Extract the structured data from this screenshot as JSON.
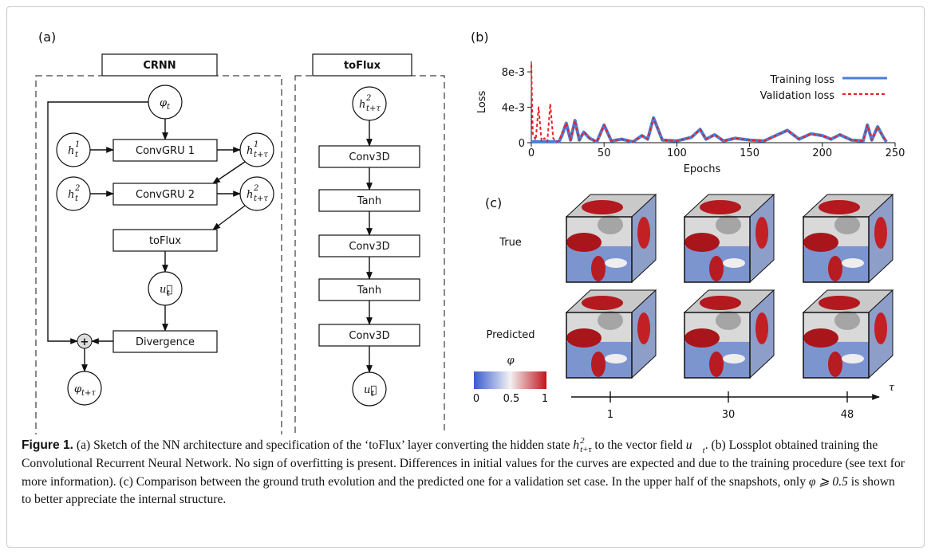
{
  "diagram": {
    "panel": "(a)",
    "crnn": {
      "title": "CRNN",
      "boxes": [
        "ConvGRU 1",
        "ConvGRU 2",
        "toFlux",
        "Divergence"
      ],
      "plus": "+",
      "nodes": [
        {
          "base": "φ",
          "sub": "t"
        },
        {
          "base": "h",
          "sub": "t",
          "sup": "1"
        },
        {
          "base": "h",
          "sub": "t+τ",
          "sup": "1"
        },
        {
          "base": "h",
          "sub": "t",
          "sup": "2"
        },
        {
          "base": "h",
          "sub": "t+τ",
          "sup": "2"
        },
        {
          "base": "u⃗",
          "sub": "t"
        },
        {
          "base": "φ",
          "sub": "t+τ"
        }
      ]
    },
    "toflux": {
      "title": "toFlux",
      "boxes": [
        "Conv3D",
        "Tanh",
        "Conv3D",
        "Tanh",
        "Conv3D"
      ],
      "nodes": [
        {
          "base": "h",
          "sub": "t+τ",
          "sup": "2"
        },
        {
          "base": "u⃗",
          "sub": "t"
        }
      ]
    }
  },
  "chart_data": {
    "type": "line",
    "panel": "(b)",
    "x_label": "Epochs",
    "y_label": "Loss",
    "legend": "upper right",
    "x": [
      0,
      1,
      3,
      5,
      7,
      9,
      11,
      13,
      15,
      17,
      19,
      21,
      24,
      27,
      30,
      33,
      36,
      40,
      45,
      50,
      55,
      62,
      70,
      76,
      80,
      84,
      90,
      100,
      110,
      116,
      120,
      126,
      132,
      140,
      150,
      160,
      168,
      176,
      184,
      192,
      200,
      206,
      212,
      220,
      228,
      231,
      234,
      238,
      242,
      244
    ],
    "series": [
      {
        "name": "Training loss",
        "color": "#4a7fd8",
        "values": [
          0.0001,
          0.0001,
          0.0001,
          0.0001,
          0.0001,
          0.0001,
          0.0001,
          0.0001,
          0.0001,
          0.0001,
          0.0001,
          0.0008,
          0.0022,
          0.0003,
          0.0025,
          0.0003,
          0.0012,
          0.0005,
          0.0001,
          0.002,
          0.0002,
          0.0004,
          0.0001,
          0.0008,
          0.0004,
          0.0028,
          0.0003,
          0.0002,
          0.0006,
          0.0015,
          0.0004,
          0.0009,
          0.0002,
          0.0005,
          0.0003,
          0.0002,
          0.0008,
          0.0014,
          0.0004,
          0.001,
          0.0008,
          0.0004,
          0.0009,
          0.0003,
          0.0002,
          0.002,
          0.0003,
          0.0018,
          0.0006,
          0.0001
        ]
      },
      {
        "name": "Validation loss",
        "color": "#e8202a",
        "dashed": true,
        "values": [
          0.0088,
          0.001,
          0.0003,
          0.004,
          0.0002,
          0.0005,
          0.0001,
          0.0044,
          0.0005,
          0.0001,
          0.0002,
          0.001,
          0.0022,
          0.0003,
          0.0025,
          0.0003,
          0.0012,
          0.0005,
          0.0001,
          0.002,
          0.0002,
          0.0004,
          0.0001,
          0.0008,
          0.0004,
          0.0028,
          0.0003,
          0.0002,
          0.0006,
          0.0015,
          0.0004,
          0.0009,
          0.0002,
          0.0005,
          0.0003,
          0.0002,
          0.0008,
          0.0014,
          0.0004,
          0.001,
          0.0008,
          0.0004,
          0.0009,
          0.0003,
          0.0002,
          0.002,
          0.0003,
          0.0018,
          0.0006,
          0.0001
        ]
      }
    ],
    "xlim": [
      0,
      250
    ],
    "xticks": [
      0,
      50,
      100,
      150,
      200,
      250
    ],
    "ylim": [
      0,
      0.009
    ],
    "yticks": [
      0,
      {
        "value": 0.004,
        "label": "4e-3"
      },
      {
        "value": 0.008,
        "label": "8e-3"
      }
    ]
  },
  "panel_c": {
    "panel": "(c)",
    "rows": [
      "True",
      "Predicted"
    ],
    "colorbar": {
      "label": "φ",
      "ticks": [
        "0",
        "0.5",
        "1"
      ]
    },
    "axis": {
      "label": "τ",
      "ticks": [
        "1",
        "30",
        "48"
      ]
    }
  },
  "caption": {
    "label": "Figure 1.",
    "segments": [
      {
        "text": " (a) Sketch of the NN architecture and specification of the ‘toFlux’ layer converting the hidden state "
      },
      {
        "base": "h",
        "sub": "t+τ",
        "sup": "2"
      },
      {
        "text": " to the vector field "
      },
      {
        "base": "u⃗",
        "sub": "t"
      },
      {
        "text": ". (b) Lossplot obtained training the Convolutional Recurrent Neural Network. No sign of overfitting is present. Differences in initial values for the curves are expected and due to the training procedure (see text for more information). (c) Comparison between the ground truth evolution and the predicted one for a validation set case. In the upper half of the snapshots, only "
      },
      {
        "text": "φ ⩾ 0.5"
      },
      {
        "text": " is shown to better appreciate the internal structure."
      }
    ]
  }
}
